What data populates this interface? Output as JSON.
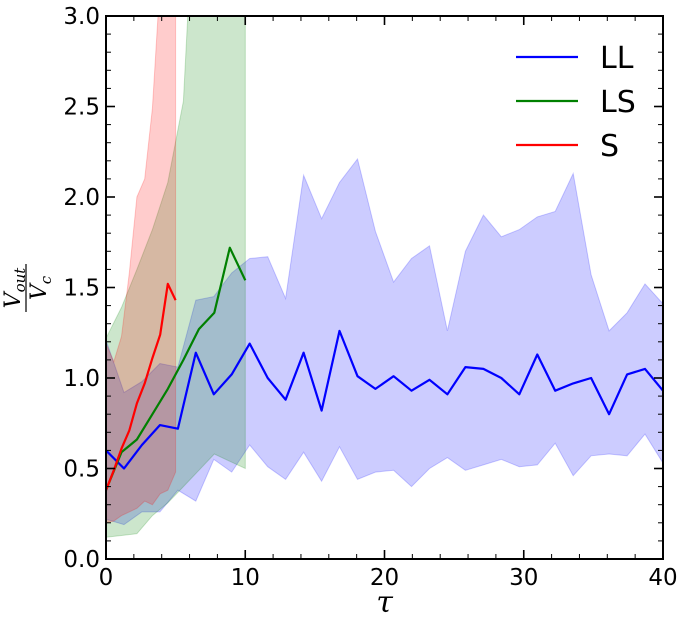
{
  "chart_data": {
    "type": "line",
    "xlabel": "τ",
    "ylabel": {
      "numerator": "V",
      "numerator_sub": "out",
      "denominator": "V",
      "denominator_sub": "c"
    },
    "xlim": [
      0,
      40
    ],
    "ylim": [
      0,
      3.0
    ],
    "x_ticks": [
      0,
      10,
      20,
      30,
      40
    ],
    "x_tick_labels": [
      "0",
      "10",
      "20",
      "30",
      "40"
    ],
    "y_ticks": [
      0.0,
      0.5,
      1.0,
      1.5,
      2.0,
      2.5,
      3.0
    ],
    "y_tick_labels": [
      "0.0",
      "0.5",
      "1.0",
      "1.5",
      "2.0",
      "2.5",
      "3.0"
    ],
    "grid": false,
    "legend_position": "top-right",
    "series": [
      {
        "name": "LL",
        "color": "#0000ff",
        "x": [
          0,
          1.29,
          2.58,
          3.87,
          5.16,
          6.45,
          7.74,
          9.03,
          10.32,
          11.61,
          12.9,
          14.19,
          15.48,
          16.77,
          18.06,
          19.35,
          20.65,
          21.94,
          23.23,
          24.52,
          25.81,
          27.1,
          28.39,
          29.68,
          30.97,
          32.26,
          33.55,
          34.84,
          36.13,
          37.42,
          38.71,
          40
        ],
        "y": [
          0.6,
          0.5,
          0.63,
          0.74,
          0.72,
          1.14,
          0.91,
          1.02,
          1.19,
          1.0,
          0.88,
          1.14,
          0.82,
          1.26,
          1.01,
          0.94,
          1.01,
          0.93,
          0.99,
          0.91,
          1.06,
          1.05,
          1.0,
          0.91,
          1.13,
          0.93,
          0.97,
          1.0,
          0.8,
          1.02,
          1.05,
          0.93
        ],
        "upper": [
          1.21,
          0.92,
          0.98,
          1.08,
          1.06,
          1.43,
          1.45,
          1.58,
          1.66,
          1.67,
          1.44,
          2.12,
          1.88,
          2.08,
          2.21,
          1.81,
          1.53,
          1.66,
          1.73,
          1.26,
          1.7,
          1.9,
          1.78,
          1.82,
          1.89,
          1.92,
          2.13,
          1.57,
          1.26,
          1.36,
          1.52,
          1.41
        ],
        "lower": [
          0.22,
          0.19,
          0.26,
          0.26,
          0.38,
          0.32,
          0.55,
          0.48,
          0.63,
          0.51,
          0.44,
          0.59,
          0.43,
          0.62,
          0.44,
          0.48,
          0.49,
          0.4,
          0.5,
          0.56,
          0.49,
          0.52,
          0.55,
          0.51,
          0.52,
          0.64,
          0.46,
          0.57,
          0.58,
          0.57,
          0.69,
          0.53
        ]
      },
      {
        "name": "LS",
        "color": "#008000",
        "x": [
          0,
          1.11,
          2.22,
          3.33,
          4.44,
          5.56,
          6.67,
          7.78,
          8.89,
          10
        ],
        "y": [
          0.38,
          0.59,
          0.66,
          0.8,
          0.94,
          1.1,
          1.27,
          1.36,
          1.72,
          1.54
        ],
        "upper": [
          1.22,
          1.39,
          1.6,
          1.82,
          2.08,
          2.53,
          4.2,
          5.0,
          5.0,
          5.0
        ],
        "lower": [
          0.12,
          0.13,
          0.14,
          0.24,
          0.31,
          0.4,
          0.49,
          0.58,
          0.54,
          0.5
        ]
      },
      {
        "name": "S",
        "color": "#ff0000",
        "x": [
          0,
          0.56,
          1.11,
          1.67,
          2.22,
          2.78,
          3.33,
          3.89,
          4.44,
          5.0
        ],
        "y": [
          0.38,
          0.49,
          0.61,
          0.71,
          0.86,
          0.97,
          1.11,
          1.24,
          1.52,
          1.43
        ],
        "upper": [
          1.19,
          1.09,
          1.23,
          1.58,
          2.0,
          2.1,
          2.49,
          3.2,
          3.5,
          3.5
        ],
        "lower": [
          0.2,
          0.21,
          0.24,
          0.26,
          0.28,
          0.32,
          0.3,
          0.36,
          0.38,
          0.48
        ]
      }
    ]
  }
}
